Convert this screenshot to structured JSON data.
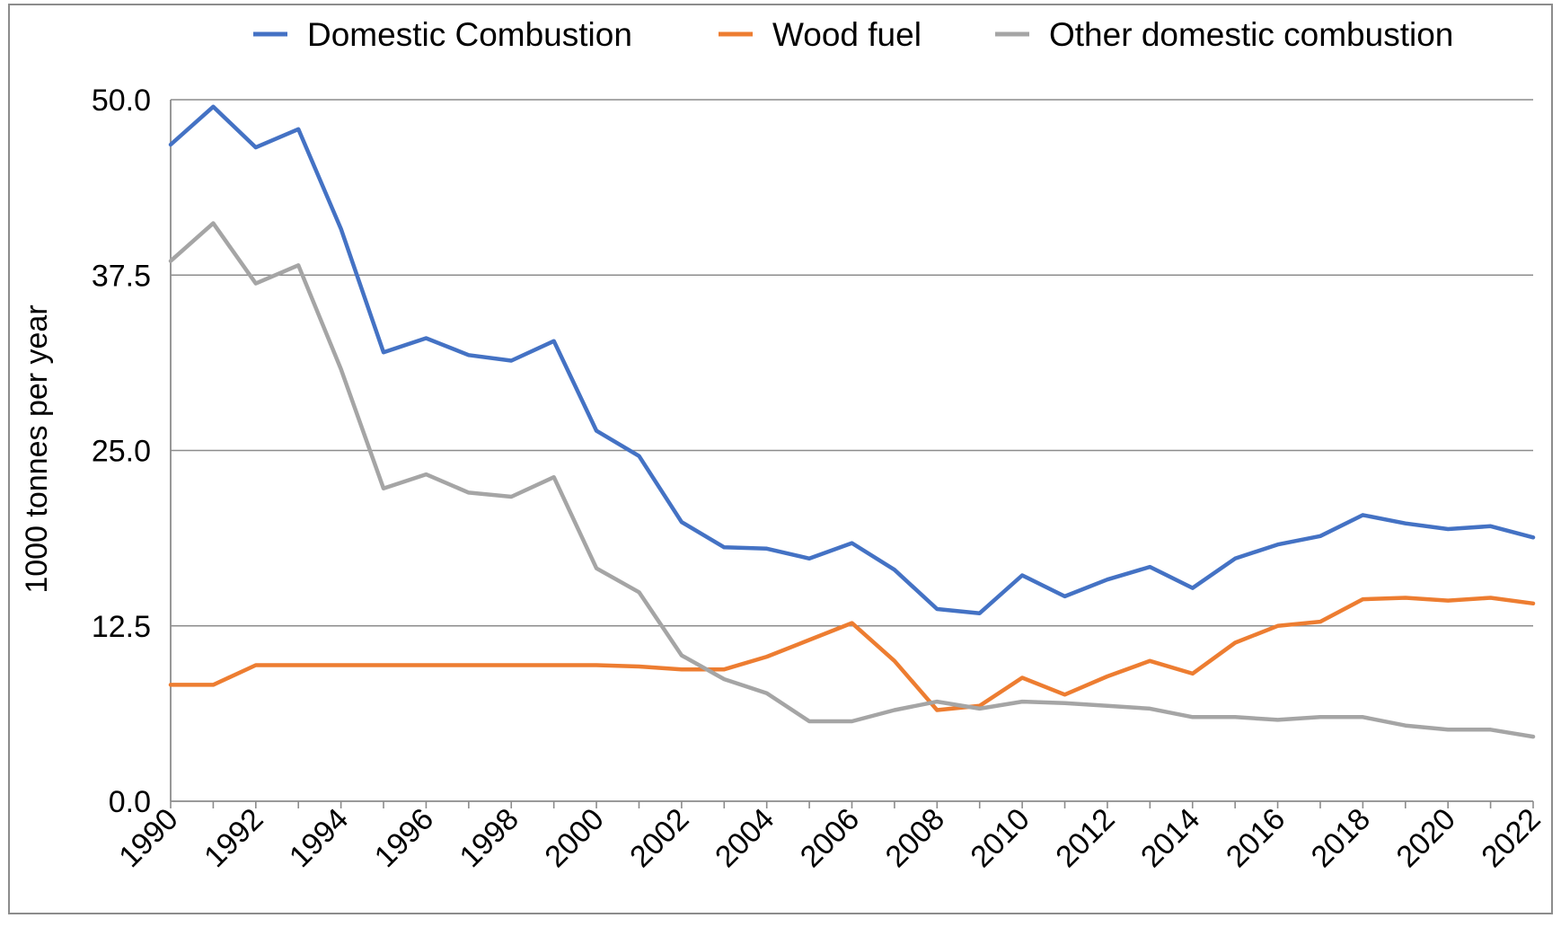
{
  "chart_data": {
    "type": "line",
    "title": "",
    "xlabel": "",
    "ylabel": "1000 tonnes per year",
    "ylim": [
      0,
      50
    ],
    "yticks": [
      "0.0",
      "12.5",
      "25.0",
      "37.5",
      "50.0"
    ],
    "ytick_values": [
      0,
      12.5,
      25,
      37.5,
      50
    ],
    "xlim": [
      1990,
      2022
    ],
    "xtick_labels": [
      "1990",
      "1992",
      "1994",
      "1996",
      "1998",
      "2000",
      "2002",
      "2004",
      "2006",
      "2008",
      "2010",
      "2012",
      "2014",
      "2016",
      "2018",
      "2020",
      "2022"
    ],
    "grid": "horizontal",
    "legend_position": "top",
    "x": [
      1990,
      1991,
      1992,
      1993,
      1994,
      1995,
      1996,
      1997,
      1998,
      1999,
      2000,
      2001,
      2002,
      2003,
      2004,
      2005,
      2006,
      2007,
      2008,
      2009,
      2010,
      2011,
      2012,
      2013,
      2014,
      2015,
      2016,
      2017,
      2018,
      2019,
      2020,
      2021,
      2022
    ],
    "series": [
      {
        "name": "Domestic Combustion",
        "color": "#4472c4",
        "values": [
          46.8,
          49.5,
          46.6,
          47.9,
          40.8,
          32.0,
          33.0,
          31.8,
          31.4,
          32.8,
          26.4,
          24.6,
          19.9,
          18.1,
          18.0,
          17.3,
          18.4,
          16.5,
          13.7,
          13.4,
          16.1,
          14.6,
          15.8,
          16.7,
          15.2,
          17.3,
          18.3,
          18.9,
          20.4,
          19.8,
          19.4,
          19.6,
          18.8
        ]
      },
      {
        "name": "Wood fuel",
        "color": "#ed7d31",
        "values": [
          8.3,
          8.3,
          9.7,
          9.7,
          9.7,
          9.7,
          9.7,
          9.7,
          9.7,
          9.7,
          9.7,
          9.6,
          9.4,
          9.4,
          10.3,
          11.5,
          12.7,
          10.0,
          6.5,
          6.8,
          8.8,
          7.6,
          8.9,
          10.0,
          9.1,
          11.3,
          12.5,
          12.8,
          14.4,
          14.5,
          14.3,
          14.5,
          14.1
        ]
      },
      {
        "name": "Other domestic combustion",
        "color": "#a5a5a5",
        "values": [
          38.5,
          41.2,
          36.9,
          38.2,
          30.8,
          22.3,
          23.3,
          22.0,
          21.7,
          23.1,
          16.6,
          14.9,
          10.4,
          8.7,
          7.7,
          5.7,
          5.7,
          6.5,
          7.1,
          6.6,
          7.1,
          7.0,
          6.8,
          6.6,
          6.0,
          6.0,
          5.8,
          6.0,
          6.0,
          5.4,
          5.1,
          5.1,
          4.6
        ]
      }
    ]
  }
}
